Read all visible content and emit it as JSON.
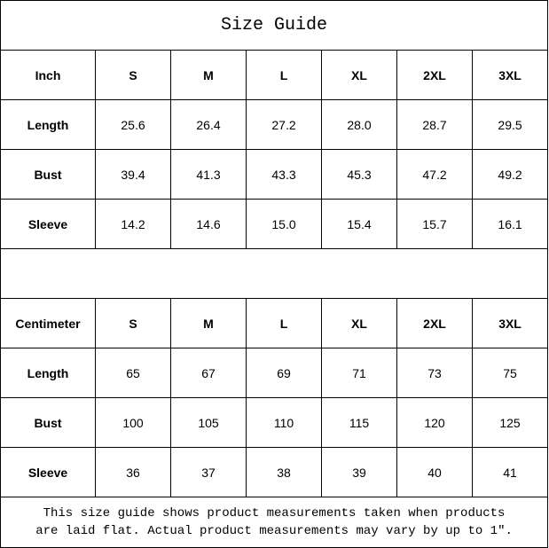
{
  "title": "Size Guide",
  "sizes": [
    "S",
    "M",
    "L",
    "XL",
    "2XL",
    "3XL"
  ],
  "tables": [
    {
      "unit": "Inch",
      "rows": [
        {
          "label": "Length",
          "values": [
            "25.6",
            "26.4",
            "27.2",
            "28.0",
            "28.7",
            "29.5"
          ]
        },
        {
          "label": "Bust",
          "values": [
            "39.4",
            "41.3",
            "43.3",
            "45.3",
            "47.2",
            "49.2"
          ]
        },
        {
          "label": "Sleeve",
          "values": [
            "14.2",
            "14.6",
            "15.0",
            "15.4",
            "15.7",
            "16.1"
          ]
        }
      ]
    },
    {
      "unit": "Centimeter",
      "rows": [
        {
          "label": "Length",
          "values": [
            "65",
            "67",
            "69",
            "71",
            "73",
            "75"
          ]
        },
        {
          "label": "Bust",
          "values": [
            "100",
            "105",
            "110",
            "115",
            "120",
            "125"
          ]
        },
        {
          "label": "Sleeve",
          "values": [
            "36",
            "37",
            "38",
            "39",
            "40",
            "41"
          ]
        }
      ]
    }
  ],
  "footer": {
    "line1": "This size guide shows product measurements taken when products",
    "line2": "are laid flat. Actual product measurements may vary by up to 1″."
  }
}
